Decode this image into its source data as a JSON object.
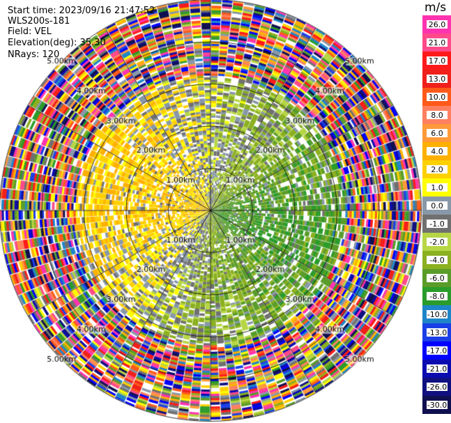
{
  "header": {
    "start_time": "Start time: 2023/09/16 21:47:52",
    "instrument": "WLS200s-181",
    "field": "Field: VEL",
    "elevation": "Elevation(deg): 35.30",
    "nrays": "NRays: 120"
  },
  "chart_data": {
    "type": "heatmap",
    "projection": "polar-ppi",
    "field": "VEL",
    "units": "m/s",
    "rays": 120,
    "range_rings_km": [
      1.0,
      2.0,
      3.0,
      4.0,
      5.0
    ],
    "ring_labels": [
      "1.00km",
      "2.00km",
      "3.00km",
      "4.00km",
      "5.00km"
    ],
    "max_range_km": 5.5,
    "radial_lines_deg": [
      0,
      30,
      60,
      90,
      120,
      150,
      180,
      210,
      240,
      270,
      300,
      330
    ],
    "colorbar": {
      "title": "m/s",
      "tick_labels": [
        "26.0",
        "21.0",
        "17.0",
        "13.0",
        "10.0",
        "8.0",
        "6.0",
        "4.0",
        "2.0",
        "1.0",
        "0.0",
        "-1.0",
        "-2.0",
        "-4.0",
        "-6.0",
        "-8.0",
        "-10.0",
        "-13.0",
        "-17.0",
        "-21.0",
        "-26.0",
        "-30.0"
      ],
      "bins_top_to_bottom": [
        {
          "color": "#ff33b0"
        },
        {
          "color": "#ff4a8a"
        },
        {
          "color": "#ff1a1a"
        },
        {
          "color": "#f0201a"
        },
        {
          "color": "#ff5a1a"
        },
        {
          "color": "#ff8060"
        },
        {
          "color": "#ff9a3a"
        },
        {
          "color": "#ffb000"
        },
        {
          "color": "#ffd000"
        },
        {
          "color": "#ffff00"
        },
        {
          "color": "#8898a8"
        },
        {
          "color": "#707070"
        },
        {
          "color": "#b6d645"
        },
        {
          "color": "#8bb020"
        },
        {
          "color": "#5a9c2a"
        },
        {
          "color": "#2a9c2a"
        },
        {
          "color": "#1e86c8"
        },
        {
          "color": "#1a3fe6"
        },
        {
          "color": "#0000ff"
        },
        {
          "color": "#0b0bb0"
        },
        {
          "color": "#101080"
        },
        {
          "color": "#101050"
        }
      ]
    },
    "pattern": {
      "mean_field": "left half positive (warm), upper-right and lower-left near zero (grey), right/lower-right negative (green/blue)",
      "noise_beyond_km": 3.2
    }
  }
}
